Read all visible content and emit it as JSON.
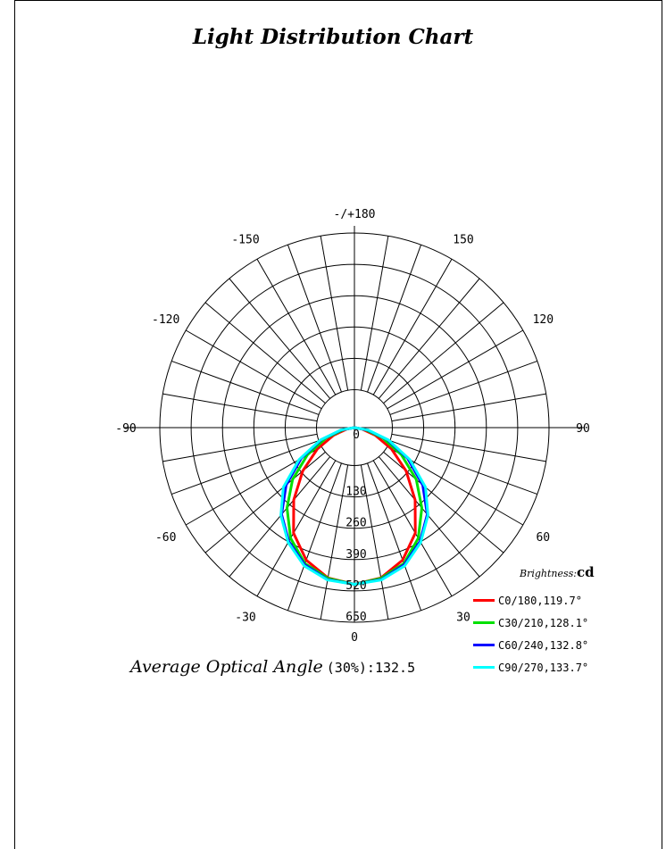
{
  "chart_data": {
    "type": "polar",
    "title": "Light Distribution Chart",
    "angle_labels": [
      {
        "angle": 180,
        "text": "-/+180"
      },
      {
        "angle": -150,
        "text": "-150"
      },
      {
        "angle": 150,
        "text": "150"
      },
      {
        "angle": -120,
        "text": "-120"
      },
      {
        "angle": 120,
        "text": "120"
      },
      {
        "angle": -90,
        "text": "-90"
      },
      {
        "angle": 90,
        "text": "90"
      },
      {
        "angle": -60,
        "text": "-60"
      },
      {
        "angle": 60,
        "text": "60"
      },
      {
        "angle": -30,
        "text": "-30"
      },
      {
        "angle": 30,
        "text": "30"
      },
      {
        "angle": 0,
        "text": "0"
      }
    ],
    "radial_ticks": [
      0,
      130,
      260,
      390,
      520,
      650
    ],
    "radial_max": 650,
    "hole_radius_fraction": 0.195,
    "unit_label": "Brightness:",
    "unit": "cd",
    "grid": true,
    "legend_position": "bottom-right",
    "series": [
      {
        "name": "C0/180,119.7°",
        "color": "#ff0000",
        "angles": [
          0,
          10,
          20,
          30,
          40,
          50,
          60,
          70,
          80,
          90
        ],
        "values": [
          650,
          633,
          585,
          505,
          392,
          280,
          178,
          92,
          30,
          0
        ]
      },
      {
        "name": "C30/210,128.1°",
        "color": "#00e000",
        "angles": [
          0,
          10,
          20,
          30,
          40,
          50,
          60,
          70,
          80,
          90
        ],
        "values": [
          650,
          635,
          600,
          530,
          435,
          335,
          225,
          125,
          45,
          0
        ]
      },
      {
        "name": "C60/240,132.8°",
        "color": "#0000ff",
        "angles": [
          0,
          10,
          20,
          30,
          40,
          50,
          60,
          70,
          80,
          90
        ],
        "values": [
          650,
          640,
          605,
          545,
          470,
          370,
          255,
          145,
          55,
          0
        ]
      },
      {
        "name": "C90/270,133.7°",
        "color": "#00ffff",
        "angles": [
          0,
          10,
          20,
          30,
          40,
          50,
          60,
          70,
          80,
          90
        ],
        "values": [
          650,
          642,
          610,
          550,
          475,
          385,
          265,
          150,
          58,
          0
        ]
      }
    ],
    "average": {
      "label": "Average Optical Angle",
      "value_text": "(30%):132.5"
    }
  }
}
